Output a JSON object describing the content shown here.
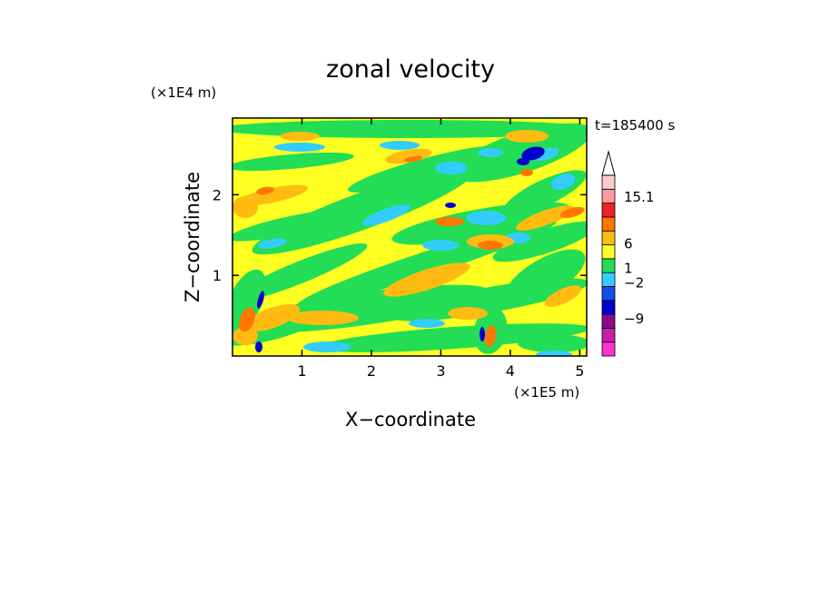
{
  "chart_data": {
    "type": "heatmap",
    "title": "zonal velocity",
    "xlabel": "X−coordinate",
    "ylabel": "Z−coordinate",
    "x_unit": "(×1E5 m)",
    "y_unit": "(×1E4 m)",
    "time_label": "t=185400 s",
    "xlim": [
      0.0,
      5.1
    ],
    "ylim": [
      0.0,
      2.95
    ],
    "x_ticks": [
      {
        "value": 1,
        "label": "1"
      },
      {
        "value": 2,
        "label": "2"
      },
      {
        "value": 3,
        "label": "3"
      },
      {
        "value": 4,
        "label": "4"
      },
      {
        "value": 5,
        "label": "5"
      }
    ],
    "y_ticks": [
      {
        "value": 1,
        "label": "1"
      },
      {
        "value": 2,
        "label": "2"
      }
    ],
    "colorbar": {
      "levels": [
        {
          "color": "#ff33cc"
        },
        {
          "color": "#cc1aaa"
        },
        {
          "color": "#8a0a8a"
        },
        {
          "color": "#0000cc"
        },
        {
          "color": "#1450e6"
        },
        {
          "color": "#33ccff"
        },
        {
          "color": "#22dd55"
        },
        {
          "color": "#ffff22"
        },
        {
          "color": "#ffbb11"
        },
        {
          "color": "#ff7700"
        },
        {
          "color": "#ee2222"
        },
        {
          "color": "#ff9999"
        },
        {
          "color": "#ffcccc"
        }
      ],
      "labels": [
        {
          "text": "15.1",
          "pos": 0.88
        },
        {
          "text": "6",
          "pos": 0.62
        },
        {
          "text": "1",
          "pos": 0.485
        },
        {
          "text": "−2",
          "pos": 0.405
        },
        {
          "text": "−9",
          "pos": 0.205
        }
      ],
      "extend": "max"
    },
    "field_colors": {
      "background": "#ffff22",
      "blue_cores": "#0000cc",
      "cyan": "#33ccff",
      "green": "#22dd55",
      "orange": "#ffbb11",
      "red_orange": "#ff7700"
    }
  }
}
